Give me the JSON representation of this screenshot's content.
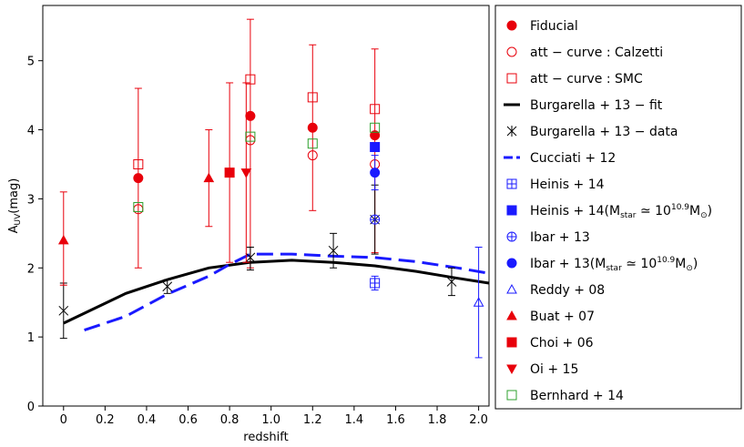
{
  "chart_data": {
    "type": "scatter",
    "xlabel": "redshift",
    "ylabel": "A",
    "ylabel_sub": "UV",
    "ylabel_unit": "(mag)",
    "xlim": [
      -0.1,
      2.05
    ],
    "ylim": [
      0,
      5.8
    ],
    "xticks": [
      "0",
      "0.2",
      "0.4",
      "0.6",
      "0.8",
      "1.0",
      "1.2",
      "1.4",
      "1.6",
      "1.8",
      "2.0"
    ],
    "yticks": [
      "0",
      "1",
      "2",
      "3",
      "4",
      "5"
    ],
    "legend_position": "right-outside",
    "colors": {
      "red": "#e8000b",
      "black": "#000000",
      "blue": "#1a1aff",
      "green": "#2ca02c"
    },
    "series": [
      {
        "name": "Fiducial",
        "marker": "circle-filled",
        "color": "red",
        "points": [
          {
            "x": 0.36,
            "y": 3.3,
            "err": [
              1.3,
              1.3
            ]
          },
          {
            "x": 0.9,
            "y": 4.2,
            "err": [
              2.2,
              1.4
            ]
          },
          {
            "x": 1.2,
            "y": 4.03,
            "err": [
              1.2,
              1.2
            ]
          },
          {
            "x": 1.5,
            "y": 3.92,
            "err": [
              1.7,
              1.25
            ]
          }
        ]
      },
      {
        "name": "att − curve : Calzetti",
        "marker": "circle-open",
        "color": "red",
        "points": [
          {
            "x": 0.36,
            "y": 2.85
          },
          {
            "x": 0.9,
            "y": 3.85
          },
          {
            "x": 1.2,
            "y": 3.63
          },
          {
            "x": 1.5,
            "y": 3.5
          }
        ]
      },
      {
        "name": "att − curve : SMC",
        "marker": "square-open",
        "color": "red",
        "points": [
          {
            "x": 0.36,
            "y": 3.5
          },
          {
            "x": 0.9,
            "y": 4.73
          },
          {
            "x": 1.2,
            "y": 4.47
          },
          {
            "x": 1.5,
            "y": 4.3
          }
        ]
      },
      {
        "name": "Burgarella + 13 − fit",
        "marker": "line-solid",
        "color": "black",
        "line": [
          {
            "x": 0.0,
            "y": 1.2
          },
          {
            "x": 0.3,
            "y": 1.63
          },
          {
            "x": 0.5,
            "y": 1.83
          },
          {
            "x": 0.7,
            "y": 2.0
          },
          {
            "x": 0.9,
            "y": 2.08
          },
          {
            "x": 1.1,
            "y": 2.11
          },
          {
            "x": 1.3,
            "y": 2.08
          },
          {
            "x": 1.5,
            "y": 2.03
          },
          {
            "x": 1.7,
            "y": 1.95
          },
          {
            "x": 1.9,
            "y": 1.85
          },
          {
            "x": 2.05,
            "y": 1.78
          }
        ]
      },
      {
        "name": "Burgarella + 13 − data",
        "marker": "x",
        "color": "black",
        "points": [
          {
            "x": 0.0,
            "y": 1.38,
            "err": [
              0.4,
              0.4
            ]
          },
          {
            "x": 0.5,
            "y": 1.73,
            "err": [
              0.1,
              0.1
            ]
          },
          {
            "x": 0.9,
            "y": 2.15,
            "err": [
              0.18,
              0.15
            ]
          },
          {
            "x": 1.3,
            "y": 2.25,
            "err": [
              0.25,
              0.25
            ]
          },
          {
            "x": 1.5,
            "y": 2.7,
            "err": [
              0.5,
              0.5
            ]
          },
          {
            "x": 1.87,
            "y": 1.8,
            "err": [
              0.2,
              0.2
            ]
          }
        ]
      },
      {
        "name": "Cucciati + 12",
        "marker": "line-dashed",
        "color": "blue",
        "line": [
          {
            "x": 0.1,
            "y": 1.1
          },
          {
            "x": 0.3,
            "y": 1.3
          },
          {
            "x": 0.5,
            "y": 1.62
          },
          {
            "x": 0.7,
            "y": 1.88
          },
          {
            "x": 0.8,
            "y": 2.05
          },
          {
            "x": 0.9,
            "y": 2.2
          },
          {
            "x": 1.1,
            "y": 2.2
          },
          {
            "x": 1.3,
            "y": 2.17
          },
          {
            "x": 1.5,
            "y": 2.15
          },
          {
            "x": 1.7,
            "y": 2.09
          },
          {
            "x": 1.9,
            "y": 2.0
          },
          {
            "x": 2.05,
            "y": 1.92
          }
        ]
      },
      {
        "name": "Heinis + 14",
        "marker": "square-cross",
        "color": "blue",
        "points": [
          {
            "x": 1.5,
            "y": 1.78,
            "err": [
              0.1,
              0.1
            ]
          }
        ]
      },
      {
        "name": "Heinis + 14(M",
        "name_sub": "star",
        "name_mid": " ≃ 10",
        "name_sup": "10.9",
        "name_end": "M",
        "name_end_sub": "⊙",
        "name_close": ")",
        "marker": "square-filled",
        "color": "blue",
        "points": [
          {
            "x": 1.5,
            "y": 3.75
          }
        ]
      },
      {
        "name": "Ibar + 13",
        "marker": "circle-cross",
        "color": "blue",
        "points": [
          {
            "x": 1.5,
            "y": 2.7
          }
        ]
      },
      {
        "name": "Ibar + 13(M",
        "name_sub": "star",
        "name_mid": " ≃ 10",
        "name_sup": "10.9",
        "name_end": "M",
        "name_end_sub": "⊙",
        "name_close": ")",
        "marker": "circle-filled",
        "color": "blue",
        "points": [
          {
            "x": 1.5,
            "y": 3.38,
            "err": [
              0.25,
              0.25
            ]
          }
        ]
      },
      {
        "name": "Reddy + 08",
        "marker": "triangle-open",
        "color": "blue",
        "points": [
          {
            "x": 2.0,
            "y": 1.5,
            "err": [
              0.8,
              0.8
            ]
          }
        ]
      },
      {
        "name": "Buat + 07",
        "marker": "triangle-filled",
        "color": "red",
        "points": [
          {
            "x": 0.0,
            "y": 2.4,
            "err": [
              0.65,
              0.7
            ]
          },
          {
            "x": 0.7,
            "y": 3.3,
            "err": [
              0.7,
              0.7
            ]
          }
        ]
      },
      {
        "name": "Choi + 06",
        "marker": "square-filled",
        "color": "red",
        "points": [
          {
            "x": 0.8,
            "y": 3.38,
            "err": [
              1.3,
              1.3
            ]
          }
        ]
      },
      {
        "name": "Oi + 15",
        "marker": "triangle-down-filled",
        "color": "red",
        "points": [
          {
            "x": 0.88,
            "y": 3.38,
            "err": [
              1.3,
              1.3
            ]
          }
        ]
      },
      {
        "name": "Bernhard + 14",
        "marker": "square-open",
        "color": "green",
        "points": [
          {
            "x": 0.36,
            "y": 2.88
          },
          {
            "x": 0.9,
            "y": 3.9
          },
          {
            "x": 1.2,
            "y": 3.8
          },
          {
            "x": 1.5,
            "y": 4.03
          }
        ]
      }
    ]
  }
}
